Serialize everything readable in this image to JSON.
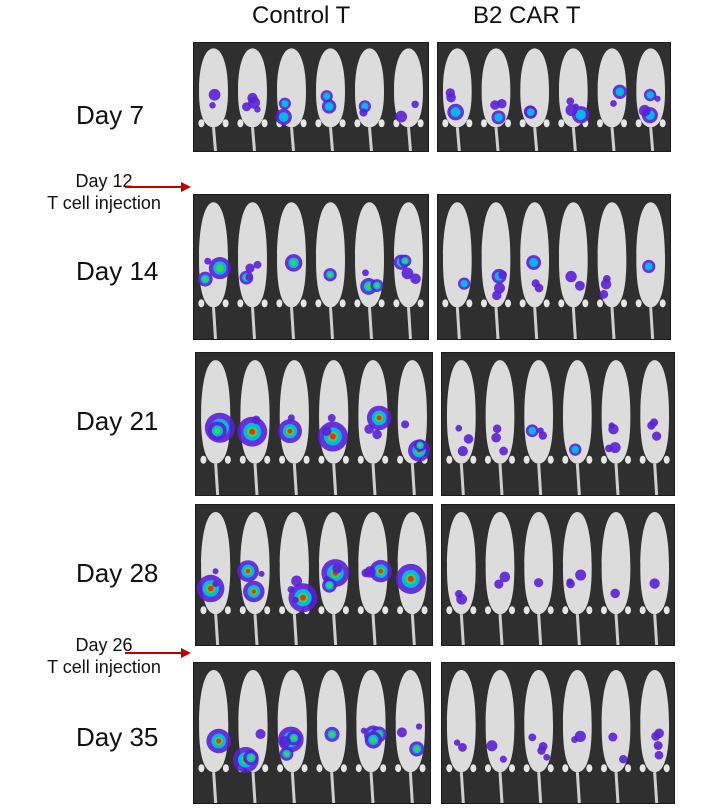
{
  "columns": {
    "control": "Control T",
    "car": "B2 CAR T"
  },
  "rows": [
    {
      "label": "Day 7"
    },
    {
      "label": "Day 14"
    },
    {
      "label": "Day 21"
    },
    {
      "label": "Day 28"
    },
    {
      "label": "Day 35"
    }
  ],
  "injections": [
    {
      "day": "Day 12",
      "text": "T cell injection"
    },
    {
      "day": "Day 26",
      "text": "T cell injection"
    }
  ],
  "colors": {
    "arrow": "#c00000",
    "background": "#2f2f2f",
    "mouse": "#dcdcdc",
    "signal_low": "#5a1fd6",
    "signal_mid": "#00b9e6",
    "signal_high": "#ff2a00"
  },
  "panel_intensity": {
    "control": [
      0.35,
      0.6,
      0.85,
      0.9,
      0.75
    ],
    "car": [
      0.45,
      0.3,
      0.25,
      0.2,
      0.2
    ]
  }
}
